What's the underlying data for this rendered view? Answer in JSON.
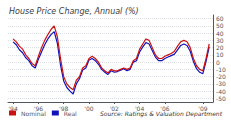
{
  "chart_data": {
    "type": "line",
    "title": "House Price Change, Annual (%)",
    "annotations": [
      "Source: Ratings & Valuation Department"
    ],
    "x": [
      1994.0,
      1994.25,
      1994.5,
      1994.75,
      1995.0,
      1995.25,
      1995.5,
      1995.75,
      1996.0,
      1996.25,
      1996.5,
      1996.75,
      1997.0,
      1997.25,
      1997.5,
      1997.75,
      1998.0,
      1998.25,
      1998.5,
      1998.75,
      1999.0,
      1999.25,
      1999.5,
      1999.75,
      2000.0,
      2000.25,
      2000.5,
      2000.75,
      2001.0,
      2001.25,
      2001.5,
      2001.75,
      2002.0,
      2002.25,
      2002.5,
      2002.75,
      2003.0,
      2003.25,
      2003.5,
      2003.75,
      2004.0,
      2004.25,
      2004.5,
      2004.75,
      2005.0,
      2005.25,
      2005.5,
      2005.75,
      2006.0,
      2006.25,
      2006.5,
      2006.75,
      2007.0,
      2007.25,
      2007.5,
      2007.75,
      2008.0,
      2008.25,
      2008.5,
      2008.75,
      2009.0,
      2009.25,
      2009.5
    ],
    "series": [
      {
        "name": "Nominal",
        "color": "#cc1111",
        "values": [
          32,
          28,
          22,
          18,
          10,
          5,
          -2,
          -5,
          8,
          20,
          30,
          38,
          45,
          50,
          35,
          5,
          -20,
          -30,
          -35,
          -38,
          -25,
          -20,
          -8,
          -5,
          5,
          8,
          5,
          0,
          -8,
          -12,
          -15,
          -10,
          -12,
          -12,
          -10,
          -8,
          -10,
          -8,
          2,
          5,
          18,
          25,
          32,
          30,
          20,
          10,
          5,
          5,
          8,
          10,
          12,
          15,
          22,
          28,
          30,
          28,
          20,
          5,
          -5,
          -10,
          -12,
          5,
          25
        ]
      },
      {
        "name": "Real",
        "color": "#1111bb",
        "values": [
          28,
          24,
          17,
          13,
          6,
          2,
          -5,
          -8,
          4,
          14,
          24,
          32,
          38,
          42,
          26,
          -4,
          -26,
          -35,
          -40,
          -44,
          -30,
          -23,
          -11,
          -8,
          3,
          5,
          2,
          -3,
          -10,
          -14,
          -17,
          -12,
          -14,
          -13,
          -11,
          -9,
          -12,
          -10,
          0,
          2,
          14,
          21,
          27,
          25,
          16,
          7,
          2,
          2,
          5,
          7,
          9,
          11,
          17,
          23,
          25,
          23,
          15,
          1,
          -9,
          -14,
          -16,
          1,
          21
        ]
      }
    ],
    "xlim": [
      1993.6,
      2009.8
    ],
    "xticks": [
      {
        "value": 1994,
        "label": "'94"
      },
      {
        "value": 1996,
        "label": "'96"
      },
      {
        "value": 1998,
        "label": "'98"
      },
      {
        "value": 2000,
        "label": "'00"
      },
      {
        "value": 2002,
        "label": "'02"
      },
      {
        "value": 2004,
        "label": "'04"
      },
      {
        "value": 2006,
        "label": "'06"
      },
      {
        "value": 2009,
        "label": "'09"
      }
    ],
    "ylim": [
      -55,
      65
    ],
    "yticks": [
      60,
      50,
      40,
      30,
      20,
      10,
      0,
      -10,
      -20,
      -30,
      -40,
      -50
    ],
    "grid": true,
    "legend": "lower left"
  }
}
